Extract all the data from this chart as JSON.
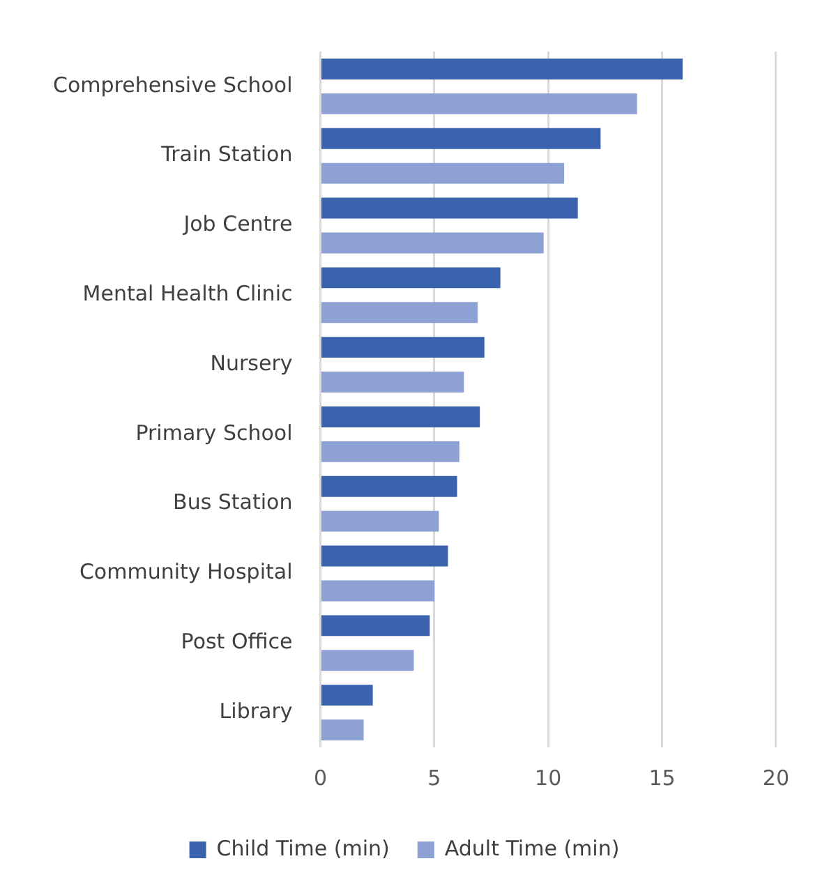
{
  "chart_data": {
    "type": "bar",
    "orientation": "horizontal",
    "categories": [
      "Comprehensive School",
      "Train Station",
      "Job Centre",
      "Mental Health Clinic",
      "Nursery",
      "Primary School",
      "Bus Station",
      "Community Hospital",
      "Post Office",
      "Library"
    ],
    "series": [
      {
        "name": "Child Time (min)",
        "color": "#3a62ad",
        "values": [
          15.9,
          12.3,
          11.3,
          7.9,
          7.2,
          7.0,
          6.0,
          5.6,
          4.8,
          2.3
        ]
      },
      {
        "name": "Adult Time (min)",
        "color": "#8ea1d4",
        "values": [
          13.9,
          10.7,
          9.8,
          6.9,
          6.3,
          6.1,
          5.2,
          5.0,
          4.1,
          1.9
        ]
      }
    ],
    "xlim": [
      0,
      20
    ],
    "xticks": [
      0,
      5,
      10,
      15,
      20
    ],
    "grid": "x",
    "legend": "bottom"
  }
}
